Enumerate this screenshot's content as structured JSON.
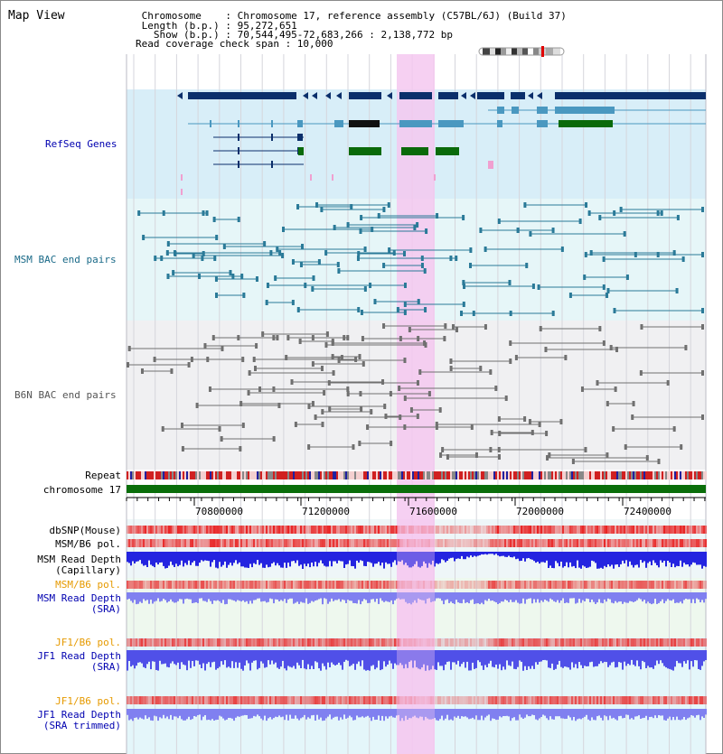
{
  "header": {
    "title": "Map View",
    "info_lines": [
      " Chromosome    : Chromosome 17, reference assembly (C57BL/6J) (Build 37)",
      " Length (b.p.) : 95,272,651",
      "   Show (b.p.) : 70,544,495-72,683,266 : 2,138,772 bp",
      "Read coverage check span : 10,000"
    ]
  },
  "tracks": {
    "refseq": "RefSeq Genes",
    "msm_bac": "MSM BAC end pairs",
    "b6n_bac": "B6N BAC end pairs",
    "repeat": "Repeat",
    "chromosome": "chromosome 17",
    "dbsnp": "dbSNP(Mouse)",
    "msm_b6_pol": "MSM/B6 pol.",
    "msm_depth_cap_1": "MSM Read Depth",
    "msm_depth_cap_2": "(Capillary)",
    "msm_b6_pol_sra": "MSM/B6 pol.",
    "msm_depth_sra_1": "MSM Read Depth",
    "msm_depth_sra_2": "(SRA)",
    "jf1_b6_pol": "JF1/B6 pol.",
    "jf1_depth_1": "JF1 Read Depth",
    "jf1_depth_2": "(SRA)",
    "jf1_b6_pol_trim": "JF1/B6 pol.",
    "jf1_depth_trim_1": "JF1 Read Depth",
    "jf1_depth_trim_2": "(SRA trimmed)"
  },
  "axis": {
    "ticks": [
      "70800000",
      "71200000",
      "71600000",
      "72000000",
      "72400000"
    ]
  },
  "colors": {
    "highlight": "#f5c8f0",
    "refseq_bg": "#d8eef8",
    "msm_bg": "#e6f6f8",
    "b6n_bg": "#f0f0f2",
    "gene_dark": "#0b2f6b",
    "gene_mid": "#4a98c0",
    "gene_green": "#0a6a0a",
    "chromosome": "#0a6e0a",
    "depth_blue": "#2424e0",
    "depth_light": "#8080f0",
    "snp_red": "#e03030"
  }
}
